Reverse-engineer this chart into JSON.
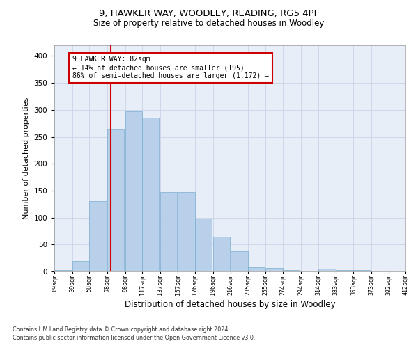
{
  "title1": "9, HAWKER WAY, WOODLEY, READING, RG5 4PF",
  "title2": "Size of property relative to detached houses in Woodley",
  "xlabel": "Distribution of detached houses by size in Woodley",
  "ylabel": "Number of detached properties",
  "footnote1": "Contains HM Land Registry data © Crown copyright and database right 2024.",
  "footnote2": "Contains public sector information licensed under the Open Government Licence v3.0.",
  "annotation_line1": "9 HAWKER WAY: 82sqm",
  "annotation_line2": "← 14% of detached houses are smaller (195)",
  "annotation_line3": "86% of semi-detached houses are larger (1,172) →",
  "property_size": 82,
  "bar_left_edges": [
    19,
    39,
    58,
    78,
    98,
    117,
    137,
    157,
    176,
    196,
    216,
    235,
    255,
    274,
    294,
    314,
    333,
    353,
    373,
    392
  ],
  "bar_heights": [
    2,
    20,
    130,
    263,
    297,
    285,
    147,
    147,
    98,
    65,
    37,
    8,
    6,
    3,
    1,
    5,
    2,
    2,
    1,
    0
  ],
  "bin_width": 19,
  "bar_color": "#b8d0ea",
  "bar_edge_color": "#7aaed0",
  "vline_color": "#cc0000",
  "vline_x": 82,
  "ylim": [
    0,
    420
  ],
  "yticks": [
    0,
    50,
    100,
    150,
    200,
    250,
    300,
    350,
    400
  ],
  "xtick_labels": [
    "19sqm",
    "39sqm",
    "58sqm",
    "78sqm",
    "98sqm",
    "117sqm",
    "137sqm",
    "157sqm",
    "176sqm",
    "196sqm",
    "216sqm",
    "235sqm",
    "255sqm",
    "274sqm",
    "294sqm",
    "314sqm",
    "333sqm",
    "353sqm",
    "373sqm",
    "392sqm",
    "412sqm"
  ],
  "annotation_box_color": "#ffffff",
  "annotation_box_edge": "#cc0000",
  "grid_color": "#c8d4e8",
  "background_color": "#e8eef8"
}
